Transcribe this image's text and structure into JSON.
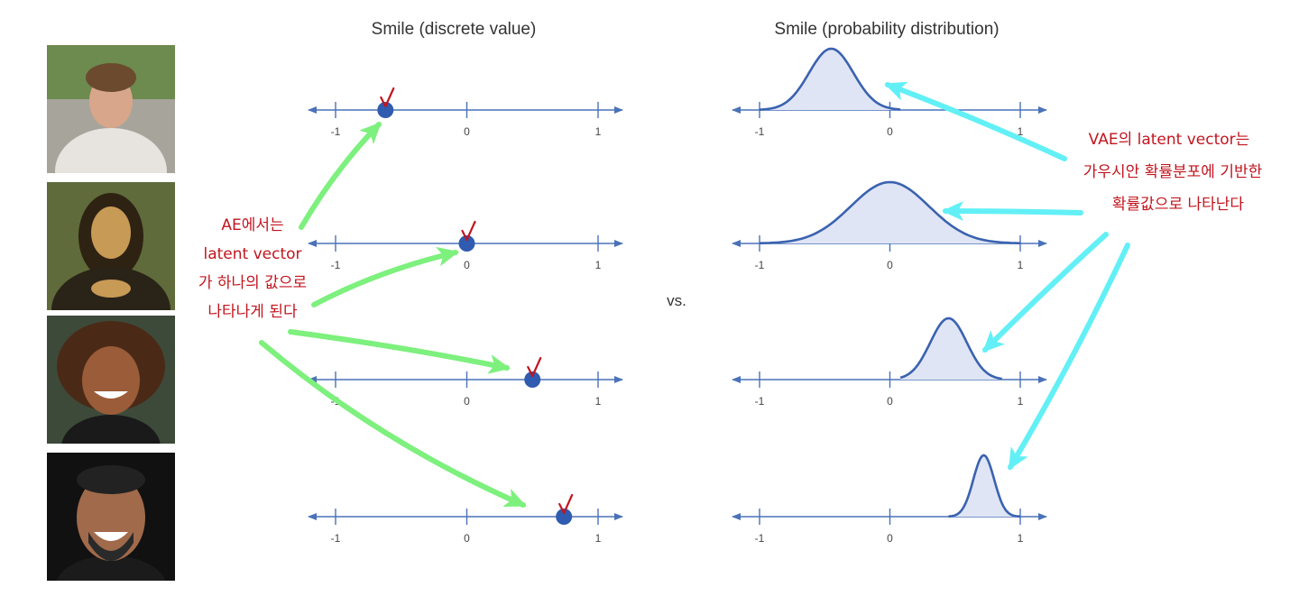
{
  "titles": {
    "left": "Smile (discrete value)",
    "right": "Smile (probability distribution)"
  },
  "vs_label": "vs.",
  "tick_labels": [
    "-1",
    "0",
    "1"
  ],
  "photos": [
    {
      "subject": "boy-frowning",
      "bg": "#6d8a4f",
      "skin": "#d8a68a",
      "hair": "#6b4a2e",
      "shirt": "#e7e3df"
    },
    {
      "subject": "mona-lisa",
      "bg": "#5f6b3a",
      "skin": "#c79a55",
      "hair": "#2e2213",
      "shirt": "#2a2318"
    },
    {
      "subject": "girl-smiling",
      "bg": "#3d4a3a",
      "skin": "#9a5c39",
      "hair": "#4a2a17",
      "shirt": "#1a1a1a"
    },
    {
      "subject": "man-laughing",
      "bg": "#111111",
      "skin": "#a06a4b",
      "hair": "#222222",
      "shirt": "#1b1b1b"
    }
  ],
  "ae_annotation": [
    "AE에서는",
    "latent vector",
    "가 하나의 값으로",
    "나타나게 된다"
  ],
  "vae_annotation": [
    "VAE의 latent vector는",
    "가우시안 확률분포에 기반한",
    "확률값으로 나타난다"
  ],
  "colors": {
    "axis": "#4a72b8",
    "dot": "#2f5bb0",
    "curve": "#3a62b0",
    "fill": "#dfe5f4",
    "check": "#c2151f",
    "green_arrow": "#7df07d",
    "cyan_arrow": "#62f0f6",
    "annotation": "#c2151f"
  },
  "chart_data": [
    {
      "type": "scatter",
      "title": "Smile (discrete value)",
      "xlim": [
        -1,
        1
      ],
      "x_ticks": [
        "-1",
        "0",
        "1"
      ],
      "values": [
        -0.62,
        0.0,
        0.5,
        0.74
      ]
    },
    {
      "type": "area",
      "title": "Smile (probability distribution)",
      "xlim": [
        -1,
        1
      ],
      "x_ticks": [
        "-1",
        "0",
        "1"
      ],
      "series": [
        {
          "mean": -0.45,
          "std": 0.17,
          "range": [
            -1,
            0.08
          ]
        },
        {
          "mean": 0.0,
          "std": 0.3,
          "range": [
            -1,
            1
          ]
        },
        {
          "mean": 0.45,
          "std": 0.14,
          "range": [
            0.08,
            0.86
          ]
        },
        {
          "mean": 0.72,
          "std": 0.08,
          "range": [
            0.45,
            1
          ]
        }
      ]
    }
  ]
}
